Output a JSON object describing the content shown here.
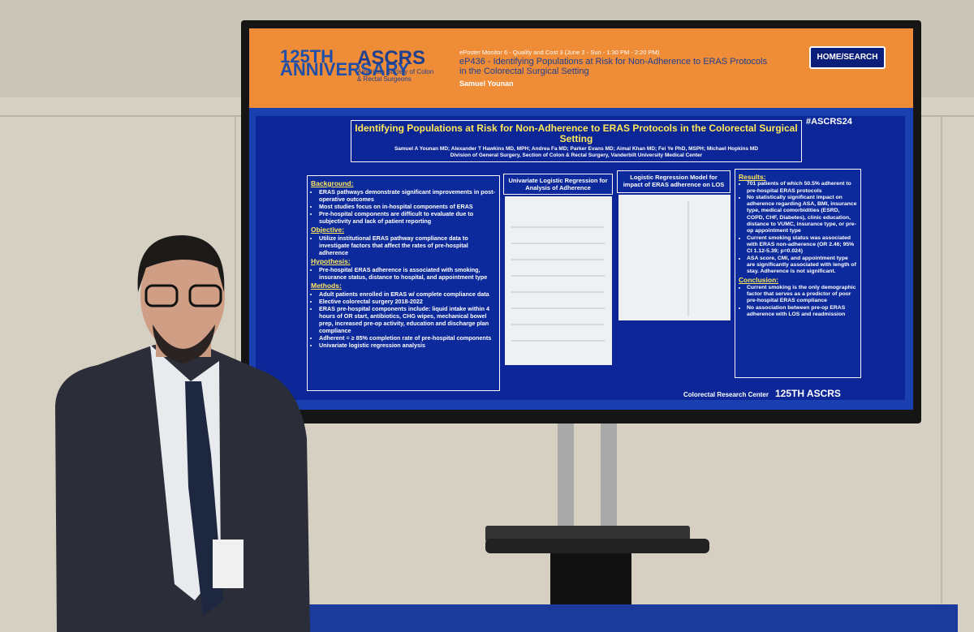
{
  "screen": {
    "header": {
      "logo_anniversary": "125TH ANNIVERSARY",
      "logo_org": "ASCRS",
      "logo_subtitle": "American Society of Colon & Rectal Surgeons",
      "session": "ePoster Monitor 6 - Quality and Cost 3 (June 2 - Sun - 1:30 PM - 2:20 PM)",
      "poster_title": "eP436 - Identifying Populations at Risk for Non-Adherence to ERAS Protocols in the Colorectal Surgical Setting",
      "presenter": "Samuel Younan",
      "button": "HOME/SEARCH"
    },
    "poster": {
      "title": "Identifying Populations at Risk for Non-Adherence to ERAS Protocols in the Colorectal Surgical Setting",
      "authors": "Samuel A Younan MD; Alexander T Hawkins MD, MPH; Andrea Fa MD; Parker Evans MD; Aimal Khan MD; Fei Ye PhD, MSPH; Michael Hopkins MD",
      "affiliation": "Division of General Surgery, Section of Colon & Rectal Surgery, Vanderbilt University Medical Center",
      "hashtag": "#ASCRS24",
      "left": [
        {
          "heading": "Background:",
          "bullets": [
            "ERAS pathways demonstrate significant improvements in post-operative outcomes",
            "Most studies focus on in-hospital components of ERAS",
            "Pre-hospital components are difficult to evaluate due to subjectivity and lack of patient reporting"
          ]
        },
        {
          "heading": "Objective:",
          "bullets": [
            "Utilize institutional ERAS pathway compliance data to investigate factors that affect the rates of pre-hospital adherence"
          ]
        },
        {
          "heading": "Hypothesis:",
          "bullets": [
            "Pre-hospital ERAS adherence is associated with smoking, insurance status, distance to hospital, and appointment type"
          ]
        },
        {
          "heading": "Methods:",
          "bullets": [
            "Adult patients enrolled in ERAS w/ complete compliance data",
            "Elective colorectal surgery 2018-2022",
            "ERAS pre-hospital components include: liquid intake within 4 hours of OR start, antibiotics, CHG wipes, mechanical bowel prep, increased pre-op activity, education and discharge plan compliance",
            "Adherent = ≥ 85% completion rate of pre-hospital components",
            "Univariate logistic regression analysis"
          ]
        }
      ],
      "table1_title": "Univariate Logistic Regression for Analysis of Adherence",
      "table2_title": "Logistic Regression Model for impact of ERAS adherence on LOS",
      "right": [
        {
          "heading": "Results:",
          "bullets": [
            "701 patients of which 50.5% adherent to pre-hospital ERAS protocols",
            "No statistically significant impact on adherence regarding ASA, BMI, insurance type, medical comorbidities (ESRD, COPD, CHF, Diabetes), clinic education, distance to VUMC, insurance type, or pre-op appointment type",
            "Current smoking status was associated with ERAS non-adherence (OR 2.46; 95% CI 1.12-5.39; p=0.024)",
            "ASA score, CMI, and appointment type are significantly associated with length of stay. Adherence is not significant."
          ]
        },
        {
          "heading": "Conclusion:",
          "bullets": [
            "Current smoking is the only demographic factor that serves as a predictor of poor pre-hospital ERAS compliance",
            "No association between pre-op ERAS adherence with LOS and readmission"
          ]
        }
      ],
      "footer_left": "Colorectal Research Center",
      "footer_right": "125TH ASCRS"
    }
  }
}
